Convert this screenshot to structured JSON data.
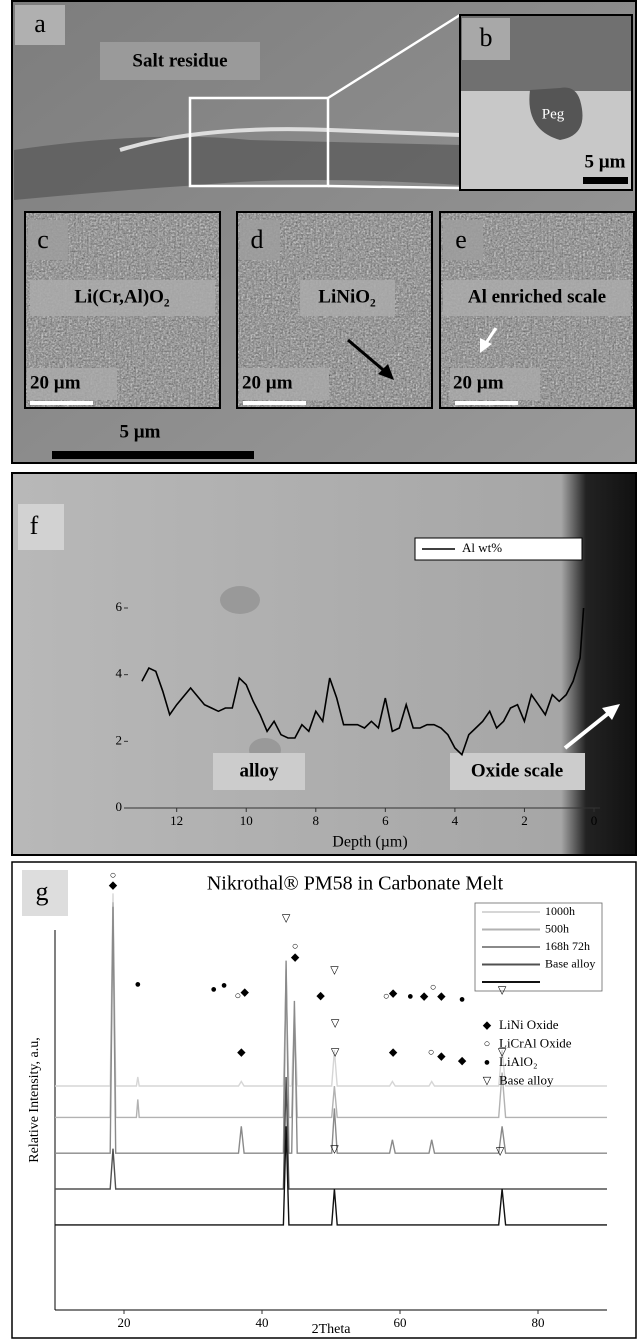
{
  "images": {
    "a": {
      "label": "a",
      "annotation": "Salt residue",
      "scale_bar": "5 µm"
    },
    "b": {
      "label": "b",
      "annotation": "Peg",
      "scale_bar": "5 µm"
    },
    "c": {
      "label": "c",
      "annotation": "Li(Cr,Al)O₂",
      "scale_bar": "20 µm"
    },
    "d": {
      "label": "d",
      "annotation": "LiNiO₂",
      "scale_bar": "20 µm"
    },
    "e": {
      "label": "e",
      "annotation": "Al  enriched scale",
      "scale_bar": "20 µm"
    }
  },
  "chart_data": [
    {
      "type": "line",
      "label": "f",
      "xlabel": "Depth (µm)",
      "xlim": [
        13.4,
        0
      ],
      "xticks": [
        12,
        10,
        8,
        6,
        4,
        2,
        0
      ],
      "ylim": [
        0,
        6
      ],
      "yticks": [
        0,
        2,
        4,
        6
      ],
      "x": [
        13,
        12.8,
        12.6,
        12.4,
        12.2,
        12,
        11.6,
        11.2,
        11,
        10.8,
        10.6,
        10.4,
        10.2,
        10,
        9.8,
        9.6,
        9.4,
        9.2,
        9,
        8.8,
        8.6,
        8.4,
        8.2,
        8,
        7.8,
        7.6,
        7.4,
        7.2,
        7,
        6.8,
        6.6,
        6.4,
        6.2,
        6,
        5.8,
        5.6,
        5.4,
        5.2,
        5,
        4.8,
        4.6,
        4.4,
        4.2,
        4,
        3.8,
        3.6,
        3.4,
        3.2,
        3,
        2.8,
        2.6,
        2.4,
        2.2,
        2,
        1.8,
        1.6,
        1.4,
        1.2,
        1,
        0.8,
        0.6,
        0.4,
        0.3
      ],
      "series": [
        {
          "name": "Al wt%",
          "color": "#000000",
          "values": [
            3.8,
            4.2,
            4.1,
            3.5,
            2.8,
            3.1,
            3.6,
            3.1,
            3.0,
            2.9,
            3.0,
            3.0,
            3.9,
            3.7,
            3.2,
            2.8,
            2.3,
            2.6,
            2.2,
            2.1,
            2.1,
            2.5,
            2.3,
            2.9,
            2.6,
            3.9,
            3.3,
            2.5,
            2.5,
            2.5,
            2.4,
            2.6,
            2.4,
            3.3,
            2.3,
            2.4,
            3.1,
            2.4,
            2.4,
            2.5,
            2.5,
            2.4,
            2.2,
            1.8,
            1.6,
            2.2,
            2.4,
            2.6,
            2.9,
            2.4,
            2.6,
            3.0,
            3.1,
            2.6,
            3.4,
            3.1,
            2.8,
            3.4,
            3.2,
            3.4,
            3.8,
            4.5,
            6.0
          ]
        }
      ],
      "annotations": [
        "alloy",
        "Oxide scale"
      ]
    },
    {
      "type": "line",
      "label": "g",
      "title": "Nikrothal® PM58 in Carbonate Melt",
      "xlabel": "2Theta",
      "ylabel": "Relative Intensity, a.u,",
      "xlim": [
        10,
        90
      ],
      "xticks": [
        20,
        40,
        60,
        80
      ],
      "ylim": [
        0,
        100
      ],
      "x": [
        10,
        18,
        18.4,
        18.8,
        21.8,
        22,
        22.2,
        36.6,
        37,
        37.4,
        43.1,
        43.5,
        43.9,
        44.3,
        44.7,
        45.1,
        50.1,
        50.5,
        50.9,
        58.5,
        58.9,
        59.3,
        64.2,
        64.6,
        65,
        74.3,
        74.8,
        75.3,
        90
      ],
      "series": [
        {
          "name": "1000h",
          "color": "#d6d6d6",
          "values": [
            50,
            50,
            93,
            50,
            50,
            52,
            50,
            50,
            51,
            50,
            50,
            72,
            50,
            50,
            67,
            50,
            50,
            58,
            50,
            50,
            51,
            50,
            50,
            51,
            50,
            50,
            58,
            50,
            50
          ]
        },
        {
          "name": "500h",
          "color": "#b2b2b2",
          "values": [
            43,
            43,
            91,
            43,
            43,
            47,
            43,
            43,
            43,
            43,
            43,
            76,
            43,
            43,
            65,
            43,
            43,
            50,
            43,
            43,
            43,
            43,
            43,
            43,
            43,
            43,
            53,
            43,
            43
          ]
        },
        {
          "name": "168h 72h",
          "color": "#8a8a8a",
          "values": [
            35,
            35,
            90,
            35,
            35,
            35,
            35,
            35,
            41,
            35,
            35,
            78,
            35,
            35,
            69,
            35,
            35,
            45,
            35,
            35,
            38,
            35,
            35,
            38,
            35,
            35,
            41,
            35,
            35
          ]
        },
        {
          "name": "Base alloy",
          "color": "#505050",
          "values": [
            27,
            27,
            36,
            27,
            27,
            27,
            27,
            27,
            27,
            27,
            27,
            52,
            27,
            27,
            27,
            27,
            27,
            27,
            27,
            27,
            27,
            27,
            27,
            27,
            27,
            27,
            27,
            27,
            27
          ]
        },
        {
          "color": "#111111",
          "values": [
            19,
            19,
            19,
            19,
            19,
            19,
            19,
            19,
            19,
            19,
            19,
            41,
            19,
            19,
            19,
            19,
            19,
            27,
            19,
            19,
            19,
            19,
            19,
            19,
            19,
            19,
            27,
            19,
            19
          ]
        }
      ],
      "markers": [
        {
          "symbol": "○",
          "x": 18.4,
          "y": 96.9
        },
        {
          "symbol": "◆",
          "x": 18.4,
          "y": 94.6
        },
        {
          "symbol": "▽",
          "x": 43.5,
          "y": 87.3
        },
        {
          "symbol": "○",
          "x": 44.8,
          "y": 81
        },
        {
          "symbol": "◆",
          "x": 44.8,
          "y": 78.6
        },
        {
          "symbol": "▽",
          "x": 50.5,
          "y": 75.7
        },
        {
          "symbol": "●",
          "x": 22,
          "y": 72.5
        },
        {
          "symbol": "●",
          "x": 33,
          "y": 71.4
        },
        {
          "symbol": "●",
          "x": 34.5,
          "y": 72.3
        },
        {
          "symbol": "○",
          "x": 36.5,
          "y": 70
        },
        {
          "symbol": "◆",
          "x": 37.5,
          "y": 70.8
        },
        {
          "symbol": "◆",
          "x": 48.5,
          "y": 70
        },
        {
          "symbol": "○",
          "x": 58,
          "y": 69.9
        },
        {
          "symbol": "◆",
          "x": 59,
          "y": 70.5
        },
        {
          "symbol": "●",
          "x": 61.5,
          "y": 69.9
        },
        {
          "symbol": "◆",
          "x": 63.5,
          "y": 69.9
        },
        {
          "symbol": "○",
          "x": 64.8,
          "y": 71.9
        },
        {
          "symbol": "◆",
          "x": 66,
          "y": 69.9
        },
        {
          "symbol": "●",
          "x": 69,
          "y": 69.2
        },
        {
          "symbol": "▽",
          "x": 74.8,
          "y": 71.2
        },
        {
          "symbol": "▽",
          "x": 50.6,
          "y": 63.8
        },
        {
          "symbol": "◆",
          "x": 37,
          "y": 57.4
        },
        {
          "symbol": "▽",
          "x": 50.6,
          "y": 57.4
        },
        {
          "symbol": "◆",
          "x": 59,
          "y": 57.4
        },
        {
          "symbol": "○",
          "x": 64.5,
          "y": 57.4
        },
        {
          "symbol": "◆",
          "x": 66,
          "y": 56.5
        },
        {
          "symbol": "◆",
          "x": 69,
          "y": 55.5
        },
        {
          "symbol": "▽",
          "x": 74.8,
          "y": 57.4
        },
        {
          "symbol": "▽",
          "x": 50.5,
          "y": 35.7
        },
        {
          "symbol": "▽",
          "x": 74.5,
          "y": 35.3
        }
      ],
      "marker_legend": [
        {
          "symbol": "◆",
          "name": "LiNi Oxide"
        },
        {
          "symbol": "○",
          "name": "LiCrAl Oxide"
        },
        {
          "symbol": "●",
          "name": "LiAlO₂"
        },
        {
          "symbol": "▽",
          "name": "Base alloy"
        }
      ]
    }
  ]
}
